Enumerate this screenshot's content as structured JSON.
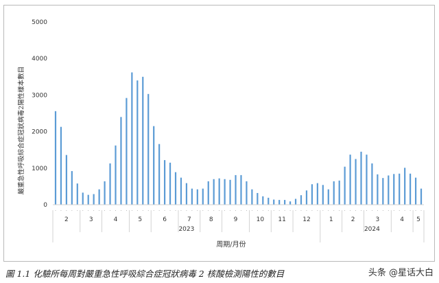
{
  "chart_data": {
    "type": "bar",
    "ylabel": "嚴重急性呼吸綜合症冠狀病毒2陽性樣本數目",
    "xlabel": "周期/月份",
    "ylim": [
      0,
      5000
    ],
    "yticks": [
      0,
      1000,
      2000,
      3000,
      4000,
      5000
    ],
    "grid": false,
    "bar_color": "#5b9bd5",
    "values": [
      2560,
      2130,
      1360,
      920,
      580,
      330,
      270,
      290,
      420,
      640,
      1130,
      1620,
      2400,
      2920,
      3620,
      3400,
      3500,
      3030,
      2150,
      1660,
      1220,
      1150,
      890,
      740,
      590,
      440,
      420,
      440,
      640,
      700,
      720,
      700,
      680,
      810,
      810,
      640,
      420,
      320,
      230,
      190,
      140,
      130,
      130,
      90,
      160,
      260,
      390,
      560,
      590,
      540,
      420,
      640,
      660,
      1040,
      1370,
      1250,
      1450,
      1370,
      1130,
      830,
      730,
      800,
      840,
      850,
      1010,
      850,
      740,
      440
    ],
    "month_labels": [
      "2",
      "3",
      "4",
      "5",
      "6",
      "7",
      "8",
      "9",
      "10",
      "11",
      "12",
      "1",
      "2",
      "3",
      "4",
      "5"
    ],
    "month_bar_counts": [
      5,
      4,
      5,
      4,
      5,
      4,
      4,
      5,
      4,
      4,
      5,
      4,
      4,
      5,
      4,
      2
    ],
    "years": [
      {
        "label": "2023",
        "month_count": 11
      },
      {
        "label": "2024",
        "month_count": 5
      }
    ]
  },
  "caption": "圖 1.1 化驗所每周對嚴重急性呼吸綜合症冠狀病毒 2 核酸檢測陽性的數目",
  "watermark": "头条 @星话大白"
}
